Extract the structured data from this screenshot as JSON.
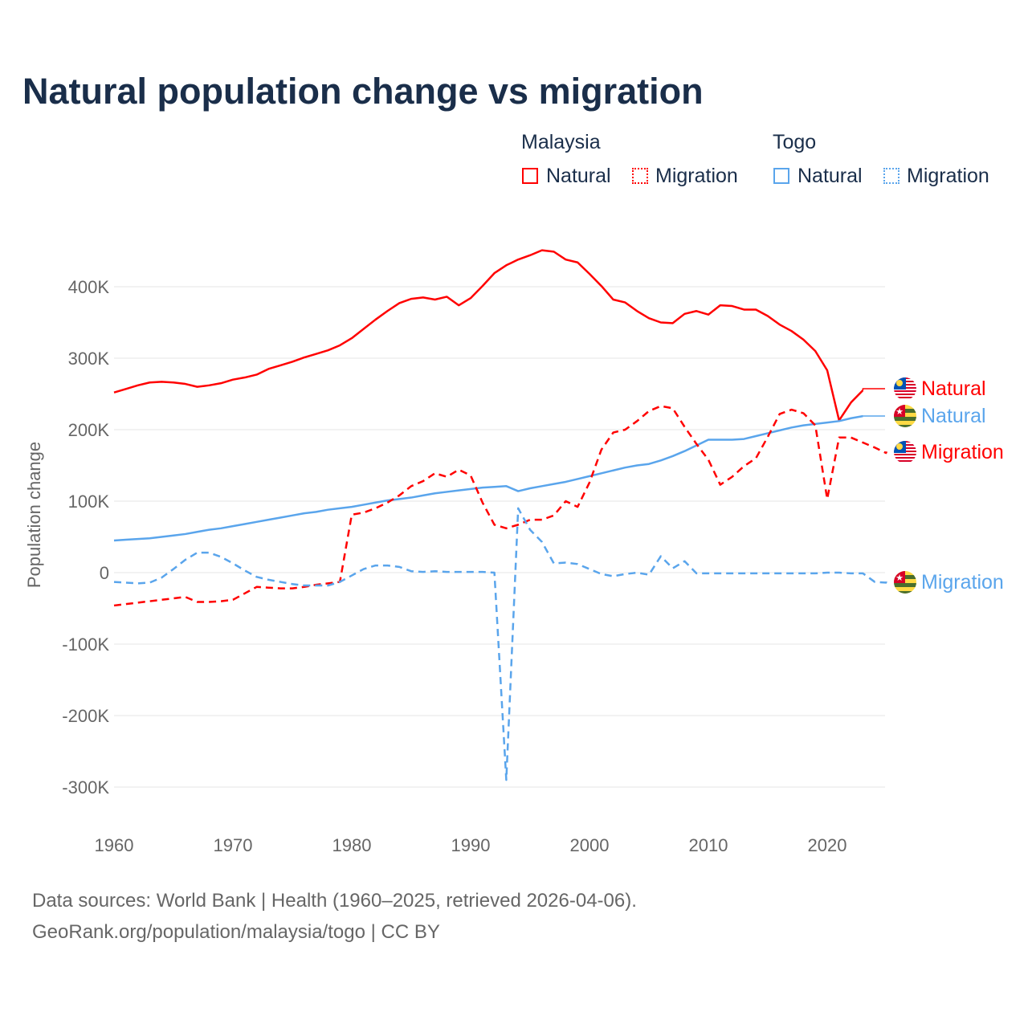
{
  "title": "Natural population change vs migration",
  "legend": {
    "groups": [
      {
        "name": "Malaysia",
        "items": [
          {
            "label": "Natural",
            "style": "solid",
            "color": "#ff0000"
          },
          {
            "label": "Migration",
            "style": "dotted",
            "color": "#ff0000"
          }
        ]
      },
      {
        "name": "Togo",
        "items": [
          {
            "label": "Natural",
            "style": "solid",
            "color": "#5aa5ec"
          },
          {
            "label": "Migration",
            "style": "dotted",
            "color": "#5aa5ec"
          }
        ]
      }
    ]
  },
  "footer": {
    "line1": "Data sources: World Bank | Health (1960–2025, retrieved 2026-04-06).",
    "line2": "GeoRank.org/population/malaysia/togo | CC BY"
  },
  "chart_data": {
    "type": "line",
    "ylabel": "Population change",
    "xlim": [
      1960,
      2025
    ],
    "ylim": [
      -330000,
      470000
    ],
    "xticks": [
      1960,
      1970,
      1980,
      1990,
      2000,
      2010,
      2020
    ],
    "yticks": [
      {
        "v": -300000,
        "label": "-300K"
      },
      {
        "v": -200000,
        "label": "-200K"
      },
      {
        "v": -100000,
        "label": "-100K"
      },
      {
        "v": 0,
        "label": "0"
      },
      {
        "v": 100000,
        "label": "100K"
      },
      {
        "v": 200000,
        "label": "200K"
      },
      {
        "v": 300000,
        "label": "300K"
      },
      {
        "v": 400000,
        "label": "400K"
      }
    ],
    "grid": true,
    "series": [
      {
        "name": "Malaysia Natural",
        "end_label": "Natural",
        "country": "malaysia",
        "color": "#ff0000",
        "dash": false,
        "start": 1960,
        "values_k": [
          252,
          257,
          262,
          266,
          267,
          266,
          264,
          260,
          262,
          265,
          270,
          273,
          277,
          285,
          290,
          295,
          301,
          306,
          311,
          318,
          328,
          341,
          354,
          366,
          377,
          383,
          385,
          382,
          386,
          374,
          384,
          401,
          419,
          430,
          438,
          444,
          451,
          449,
          438,
          434,
          418,
          401,
          382,
          378,
          366,
          356,
          350,
          349,
          362,
          366,
          361,
          374,
          373,
          368,
          368,
          359,
          347,
          338,
          326,
          310,
          283,
          213,
          238,
          255
        ]
      },
      {
        "name": "Togo Natural",
        "end_label": "Natural",
        "country": "togo",
        "color": "#5aa5ec",
        "dash": false,
        "start": 1960,
        "values_k": [
          45,
          46,
          47,
          48,
          50,
          52,
          54,
          57,
          60,
          62,
          65,
          68,
          71,
          74,
          77,
          80,
          83,
          85,
          88,
          90,
          92,
          95,
          98,
          101,
          103,
          105,
          108,
          111,
          113,
          115,
          117,
          119,
          120,
          121,
          114,
          118,
          121,
          124,
          127,
          131,
          135,
          139,
          143,
          147,
          150,
          152,
          157,
          163,
          170,
          178,
          186,
          186,
          186,
          187,
          191,
          195,
          199,
          203,
          206,
          208,
          210,
          212,
          216,
          219
        ]
      },
      {
        "name": "Malaysia Migration",
        "end_label": "Migration",
        "country": "malaysia",
        "color": "#ff0000",
        "dash": true,
        "start": 1960,
        "values_k": [
          -46,
          -44,
          -42,
          -40,
          -38,
          -36,
          -34,
          -41,
          -41,
          -40,
          -38,
          -29,
          -20,
          -21,
          -22,
          -22,
          -20,
          -17,
          -15,
          -13,
          81,
          84,
          90,
          98,
          108,
          121,
          128,
          139,
          134,
          144,
          136,
          98,
          67,
          62,
          67,
          74,
          74,
          80,
          100,
          92,
          126,
          172,
          196,
          200,
          212,
          226,
          233,
          230,
          204,
          180,
          158,
          123,
          134,
          149,
          160,
          190,
          222,
          228,
          223,
          206,
          103,
          189,
          189,
          182,
          175,
          167
        ]
      },
      {
        "name": "Togo Migration",
        "end_label": "Migration",
        "country": "togo",
        "color": "#5aa5ec",
        "dash": true,
        "start": 1960,
        "values_k": [
          -13,
          -14,
          -15,
          -14,
          -7,
          5,
          18,
          28,
          28,
          22,
          13,
          3,
          -6,
          -10,
          -13,
          -16,
          -18,
          -18,
          -18,
          -13,
          -4,
          5,
          10,
          10,
          8,
          2,
          1,
          2,
          1,
          1,
          1,
          1,
          0,
          -290,
          90,
          60,
          43,
          13,
          14,
          12,
          5,
          -2,
          -5,
          -2,
          0,
          -3,
          23,
          6,
          16,
          -1,
          -1,
          -1,
          -1,
          -1,
          -1,
          -1,
          -1,
          -1,
          -1,
          -1,
          0,
          0,
          -1,
          -1,
          -13,
          -14
        ]
      }
    ],
    "end_labels_order": [
      "Malaysia Natural",
      "Togo Natural",
      "Malaysia Migration",
      "Togo Migration"
    ]
  }
}
